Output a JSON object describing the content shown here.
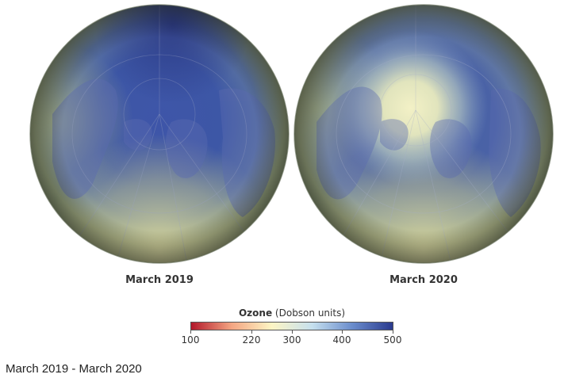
{
  "maps": [
    {
      "label": "March 2019"
    },
    {
      "label": "March 2020"
    }
  ],
  "legend": {
    "title_bold": "Ozone",
    "title_rest": " (Dobson units)",
    "min": 100,
    "max": 500,
    "ticks": [
      "100",
      "220",
      "300",
      "400",
      "500"
    ],
    "tick_values": [
      100,
      220,
      300,
      400,
      500
    ],
    "colors": [
      "#b2182b",
      "#f4a582",
      "#fdf5c4",
      "#c6e0ee",
      "#6a8ccc",
      "#2a3a8e"
    ]
  },
  "caption": "March 2019 - March 2020"
}
